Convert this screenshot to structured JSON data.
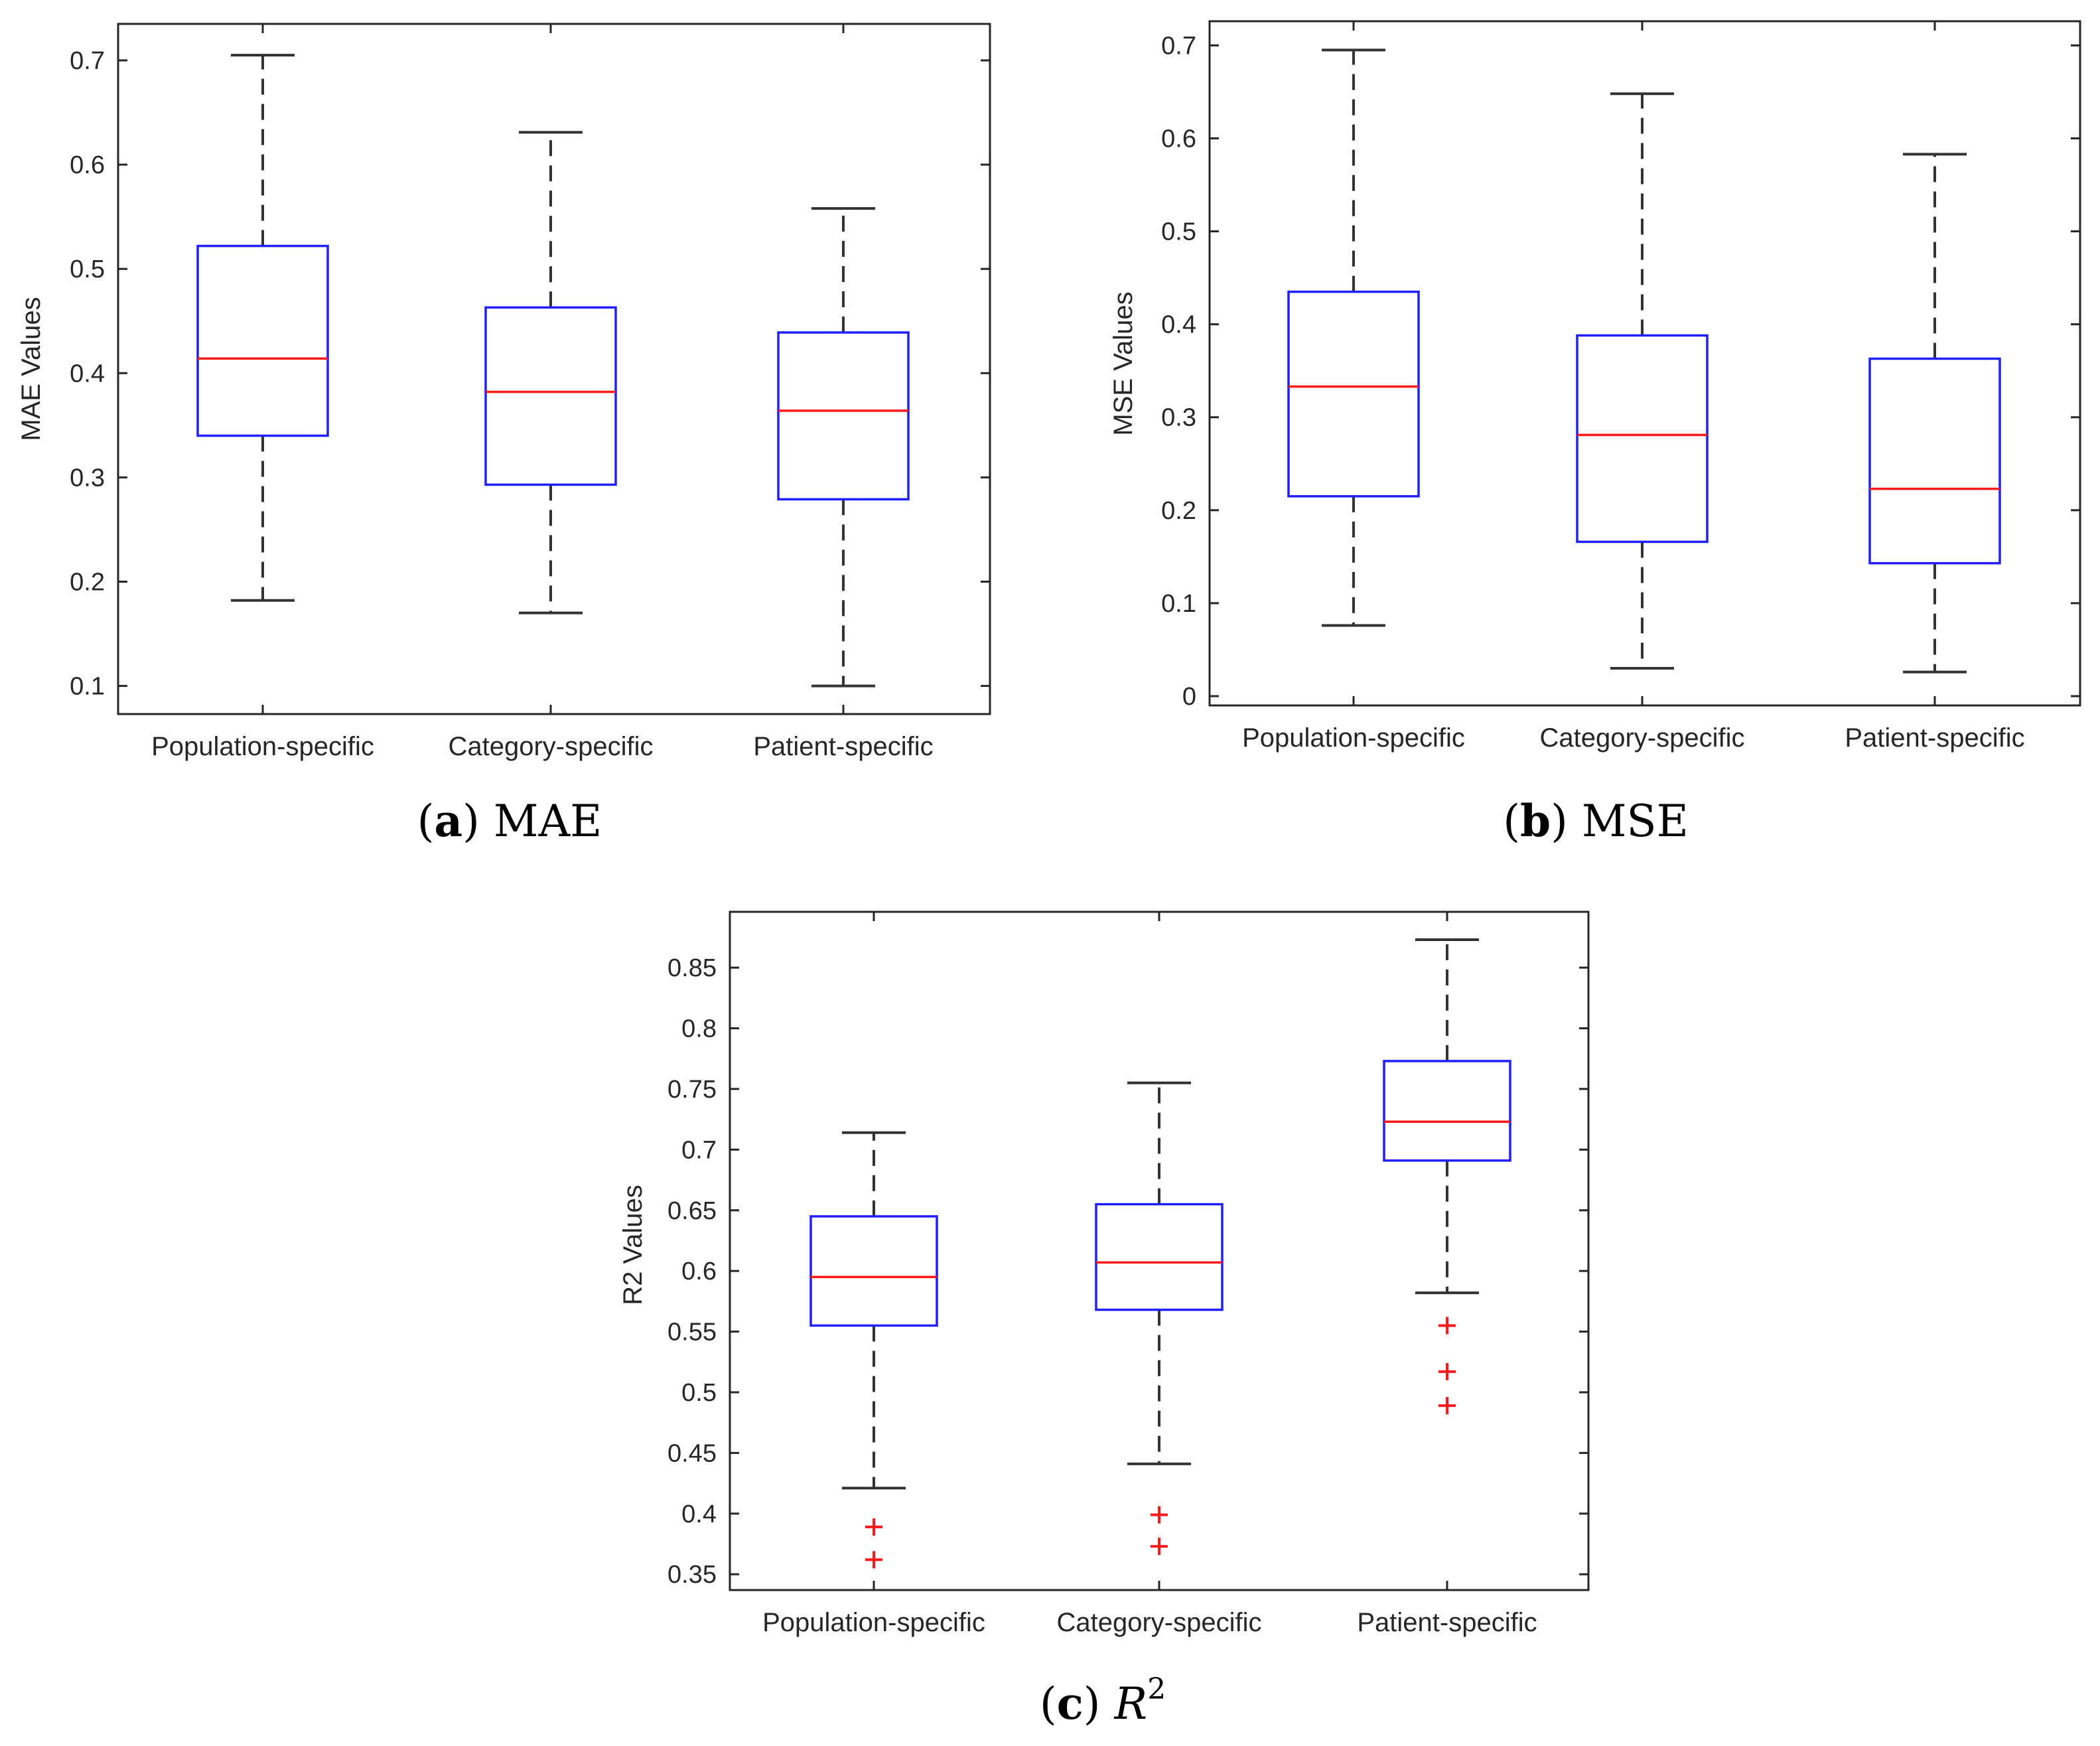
{
  "chart_data": [
    {
      "type": "box",
      "panel_id": "a",
      "ylabel": "MAE Values",
      "caption_letter": "a",
      "caption_text": "MAE",
      "ylim": [
        0.073,
        0.735
      ],
      "yticks": [
        0.1,
        0.2,
        0.3,
        0.4,
        0.5,
        0.6,
        0.7
      ],
      "ytick_labels": [
        "0.1",
        "0.2",
        "0.3",
        "0.4",
        "0.5",
        "0.6",
        "0.7"
      ],
      "categories": [
        "Population-specific",
        "Category-specific",
        "Patient-specific"
      ],
      "boxes": [
        {
          "whisker_low": 0.182,
          "q1": 0.34,
          "median": 0.414,
          "q3": 0.522,
          "whisker_high": 0.705,
          "outliers": []
        },
        {
          "whisker_low": 0.17,
          "q1": 0.293,
          "median": 0.382,
          "q3": 0.463,
          "whisker_high": 0.631,
          "outliers": []
        },
        {
          "whisker_low": 0.1,
          "q1": 0.279,
          "median": 0.364,
          "q3": 0.439,
          "whisker_high": 0.558,
          "outliers": []
        }
      ]
    },
    {
      "type": "box",
      "panel_id": "b",
      "ylabel": "MSE Values",
      "caption_letter": "b",
      "caption_text": "MSE",
      "ylim": [
        -0.01,
        0.726
      ],
      "yticks": [
        0,
        0.1,
        0.2,
        0.3,
        0.4,
        0.5,
        0.6,
        0.7
      ],
      "ytick_labels": [
        "0",
        "0.1",
        "0.2",
        "0.3",
        "0.4",
        "0.5",
        "0.6",
        "0.7"
      ],
      "categories": [
        "Population-specific",
        "Category-specific",
        "Patient-specific"
      ],
      "boxes": [
        {
          "whisker_low": 0.076,
          "q1": 0.215,
          "median": 0.333,
          "q3": 0.435,
          "whisker_high": 0.695,
          "outliers": []
        },
        {
          "whisker_low": 0.03,
          "q1": 0.166,
          "median": 0.281,
          "q3": 0.388,
          "whisker_high": 0.648,
          "outliers": []
        },
        {
          "whisker_low": 0.026,
          "q1": 0.143,
          "median": 0.223,
          "q3": 0.363,
          "whisker_high": 0.583,
          "outliers": []
        }
      ]
    },
    {
      "type": "box",
      "panel_id": "c",
      "ylabel": "R2 Values",
      "caption_letter": "c",
      "caption_text": "R",
      "caption_superscript": "2",
      "ylim": [
        0.337,
        0.896
      ],
      "yticks": [
        0.35,
        0.4,
        0.45,
        0.5,
        0.55,
        0.6,
        0.65,
        0.7,
        0.75,
        0.8,
        0.85
      ],
      "ytick_labels": [
        "0.35",
        "0.4",
        "0.45",
        "0.5",
        "0.55",
        "0.6",
        "0.65",
        "0.7",
        "0.75",
        "0.8",
        "0.85"
      ],
      "categories": [
        "Population-specific",
        "Category-specific",
        "Patient-specific"
      ],
      "boxes": [
        {
          "whisker_low": 0.421,
          "q1": 0.555,
          "median": 0.595,
          "q3": 0.645,
          "whisker_high": 0.714,
          "outliers": [
            0.389,
            0.362
          ]
        },
        {
          "whisker_low": 0.441,
          "q1": 0.568,
          "median": 0.607,
          "q3": 0.655,
          "whisker_high": 0.755,
          "outliers": [
            0.399,
            0.373
          ]
        },
        {
          "whisker_low": 0.582,
          "q1": 0.691,
          "median": 0.723,
          "q3": 0.773,
          "whisker_high": 0.873,
          "outliers": [
            0.555,
            0.517,
            0.489
          ]
        }
      ]
    }
  ],
  "colors": {
    "box": "#1f1fff",
    "median": "#ff1a1a",
    "whisker": "#333333",
    "outlier": "#ff1a1a",
    "axis": "#262626"
  }
}
